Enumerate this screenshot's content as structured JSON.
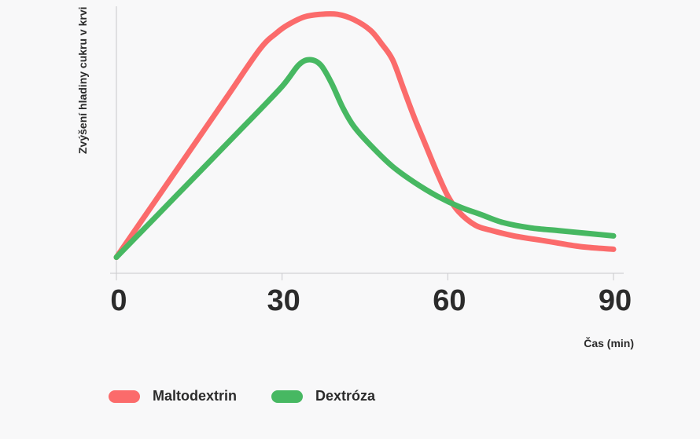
{
  "chart_data": {
    "type": "line",
    "title": "",
    "xlabel": "Čas (min)",
    "ylabel": "Zvýšení hladiny cukru v krvi",
    "x_ticks": [
      "0",
      "30",
      "60",
      "90"
    ],
    "xlim": [
      0,
      90
    ],
    "ylim": [
      0,
      100
    ],
    "grid": false,
    "legend_position": "bottom-left",
    "series": [
      {
        "name": "Maltodextrin",
        "color": "#fb6b6b",
        "x": [
          0,
          7,
          14,
          20,
          26,
          29,
          31,
          34,
          37,
          40,
          43,
          46,
          48,
          50,
          52,
          54,
          56,
          58,
          60,
          62,
          65,
          68,
          72,
          78,
          84,
          90
        ],
        "y": [
          6,
          27,
          48,
          66,
          84,
          90,
          93,
          96,
          97,
          97,
          95,
          91,
          86,
          80,
          69,
          58,
          48,
          38,
          29,
          23,
          18,
          16,
          14,
          12,
          10,
          9
        ]
      },
      {
        "name": "Dextróza",
        "color": "#47b862",
        "x": [
          0,
          8,
          16,
          24,
          30,
          33,
          35,
          37,
          39,
          41,
          43,
          46,
          50,
          54,
          58,
          62,
          66,
          70,
          75,
          80,
          85,
          90
        ],
        "y": [
          6,
          23,
          40,
          57,
          70,
          78,
          80,
          78,
          71,
          62,
          55,
          48,
          40,
          34,
          29,
          25,
          22,
          19,
          17,
          16,
          15,
          14
        ]
      }
    ]
  }
}
